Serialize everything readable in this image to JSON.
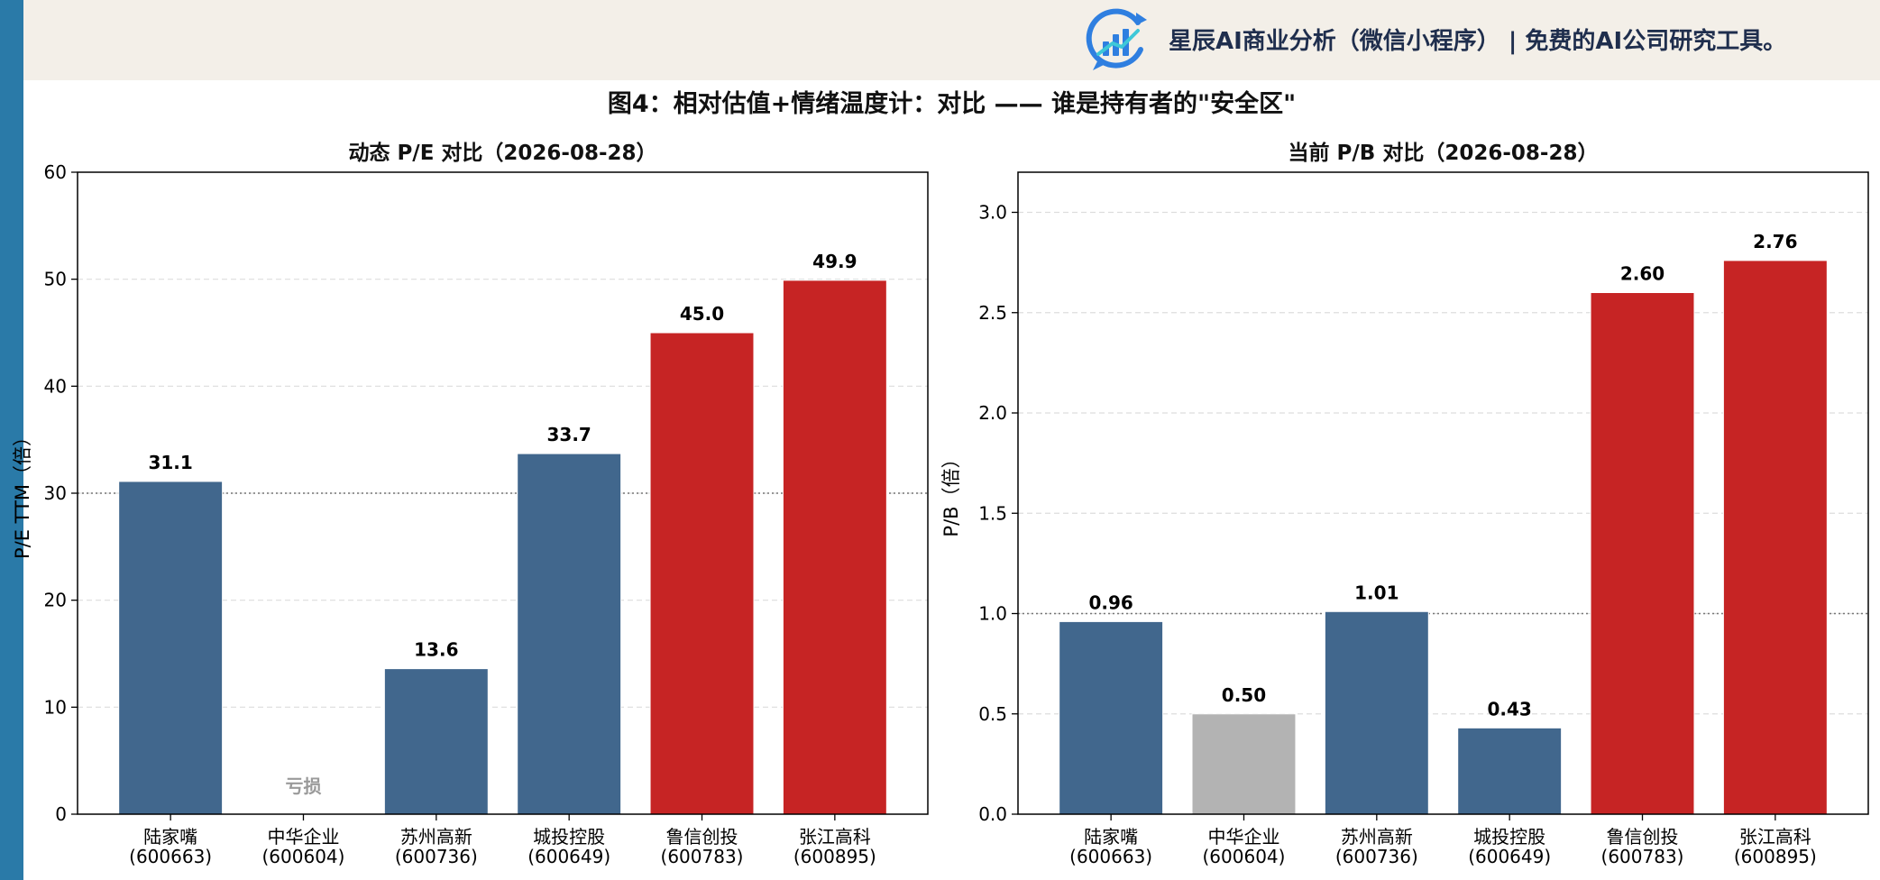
{
  "header": {
    "brand_text": "星辰AI商业分析（微信小程序）  |  免费的AI公司研究工具。",
    "logo_icon": "bar-chart-growth-logo-icon"
  },
  "title": "图4：相对估值+情绪温度计：对比 —— 谁是持有者的\"安全区\"",
  "colors": {
    "left_strip": "#2a7aa8",
    "header_band": "#f3efe8",
    "normal_bar": "#41678d",
    "high_bar": "#c62424",
    "loss_bar": "#b3b3b3",
    "loss_label": "#9a9a9a"
  },
  "chart_data": [
    {
      "type": "bar",
      "title": "动态 P/E 对比（2026-08-28）",
      "ylabel": "P/E TTM（倍）",
      "categories": [
        "陆家嘴\n(600663)",
        "中华企业\n(600604)",
        "苏州高新\n(600736)",
        "城投控股\n(600649)",
        "鲁信创投\n(600783)",
        "张江高科\n(600895)"
      ],
      "values": [
        31.1,
        null,
        13.6,
        33.7,
        45.0,
        49.9
      ],
      "value_labels": [
        "31.1",
        "亏损",
        "13.6",
        "33.7",
        "45.0",
        "49.9"
      ],
      "bar_status": [
        "normal",
        "loss",
        "normal",
        "normal",
        "high",
        "high"
      ],
      "ylim": [
        0,
        60
      ],
      "yticks": [
        0,
        10,
        20,
        30,
        40,
        50,
        60
      ],
      "reference_line": 30,
      "grid": true
    },
    {
      "type": "bar",
      "title": "当前 P/B 对比（2026-08-28）",
      "ylabel": "P/B（倍）",
      "categories": [
        "陆家嘴\n(600663)",
        "中华企业\n(600604)",
        "苏州高新\n(600736)",
        "城投控股\n(600649)",
        "鲁信创投\n(600783)",
        "张江高科\n(600895)"
      ],
      "values": [
        0.96,
        0.5,
        1.01,
        0.43,
        2.6,
        2.76
      ],
      "value_labels": [
        "0.96",
        "0.50",
        "1.01",
        "0.43",
        "2.60",
        "2.76"
      ],
      "bar_status": [
        "normal",
        "loss",
        "normal",
        "normal",
        "high",
        "high"
      ],
      "ylim": [
        0,
        3.2
      ],
      "yticks": [
        0.0,
        0.5,
        1.0,
        1.5,
        2.0,
        2.5,
        3.0
      ],
      "reference_line": 1.0,
      "grid": true
    }
  ]
}
